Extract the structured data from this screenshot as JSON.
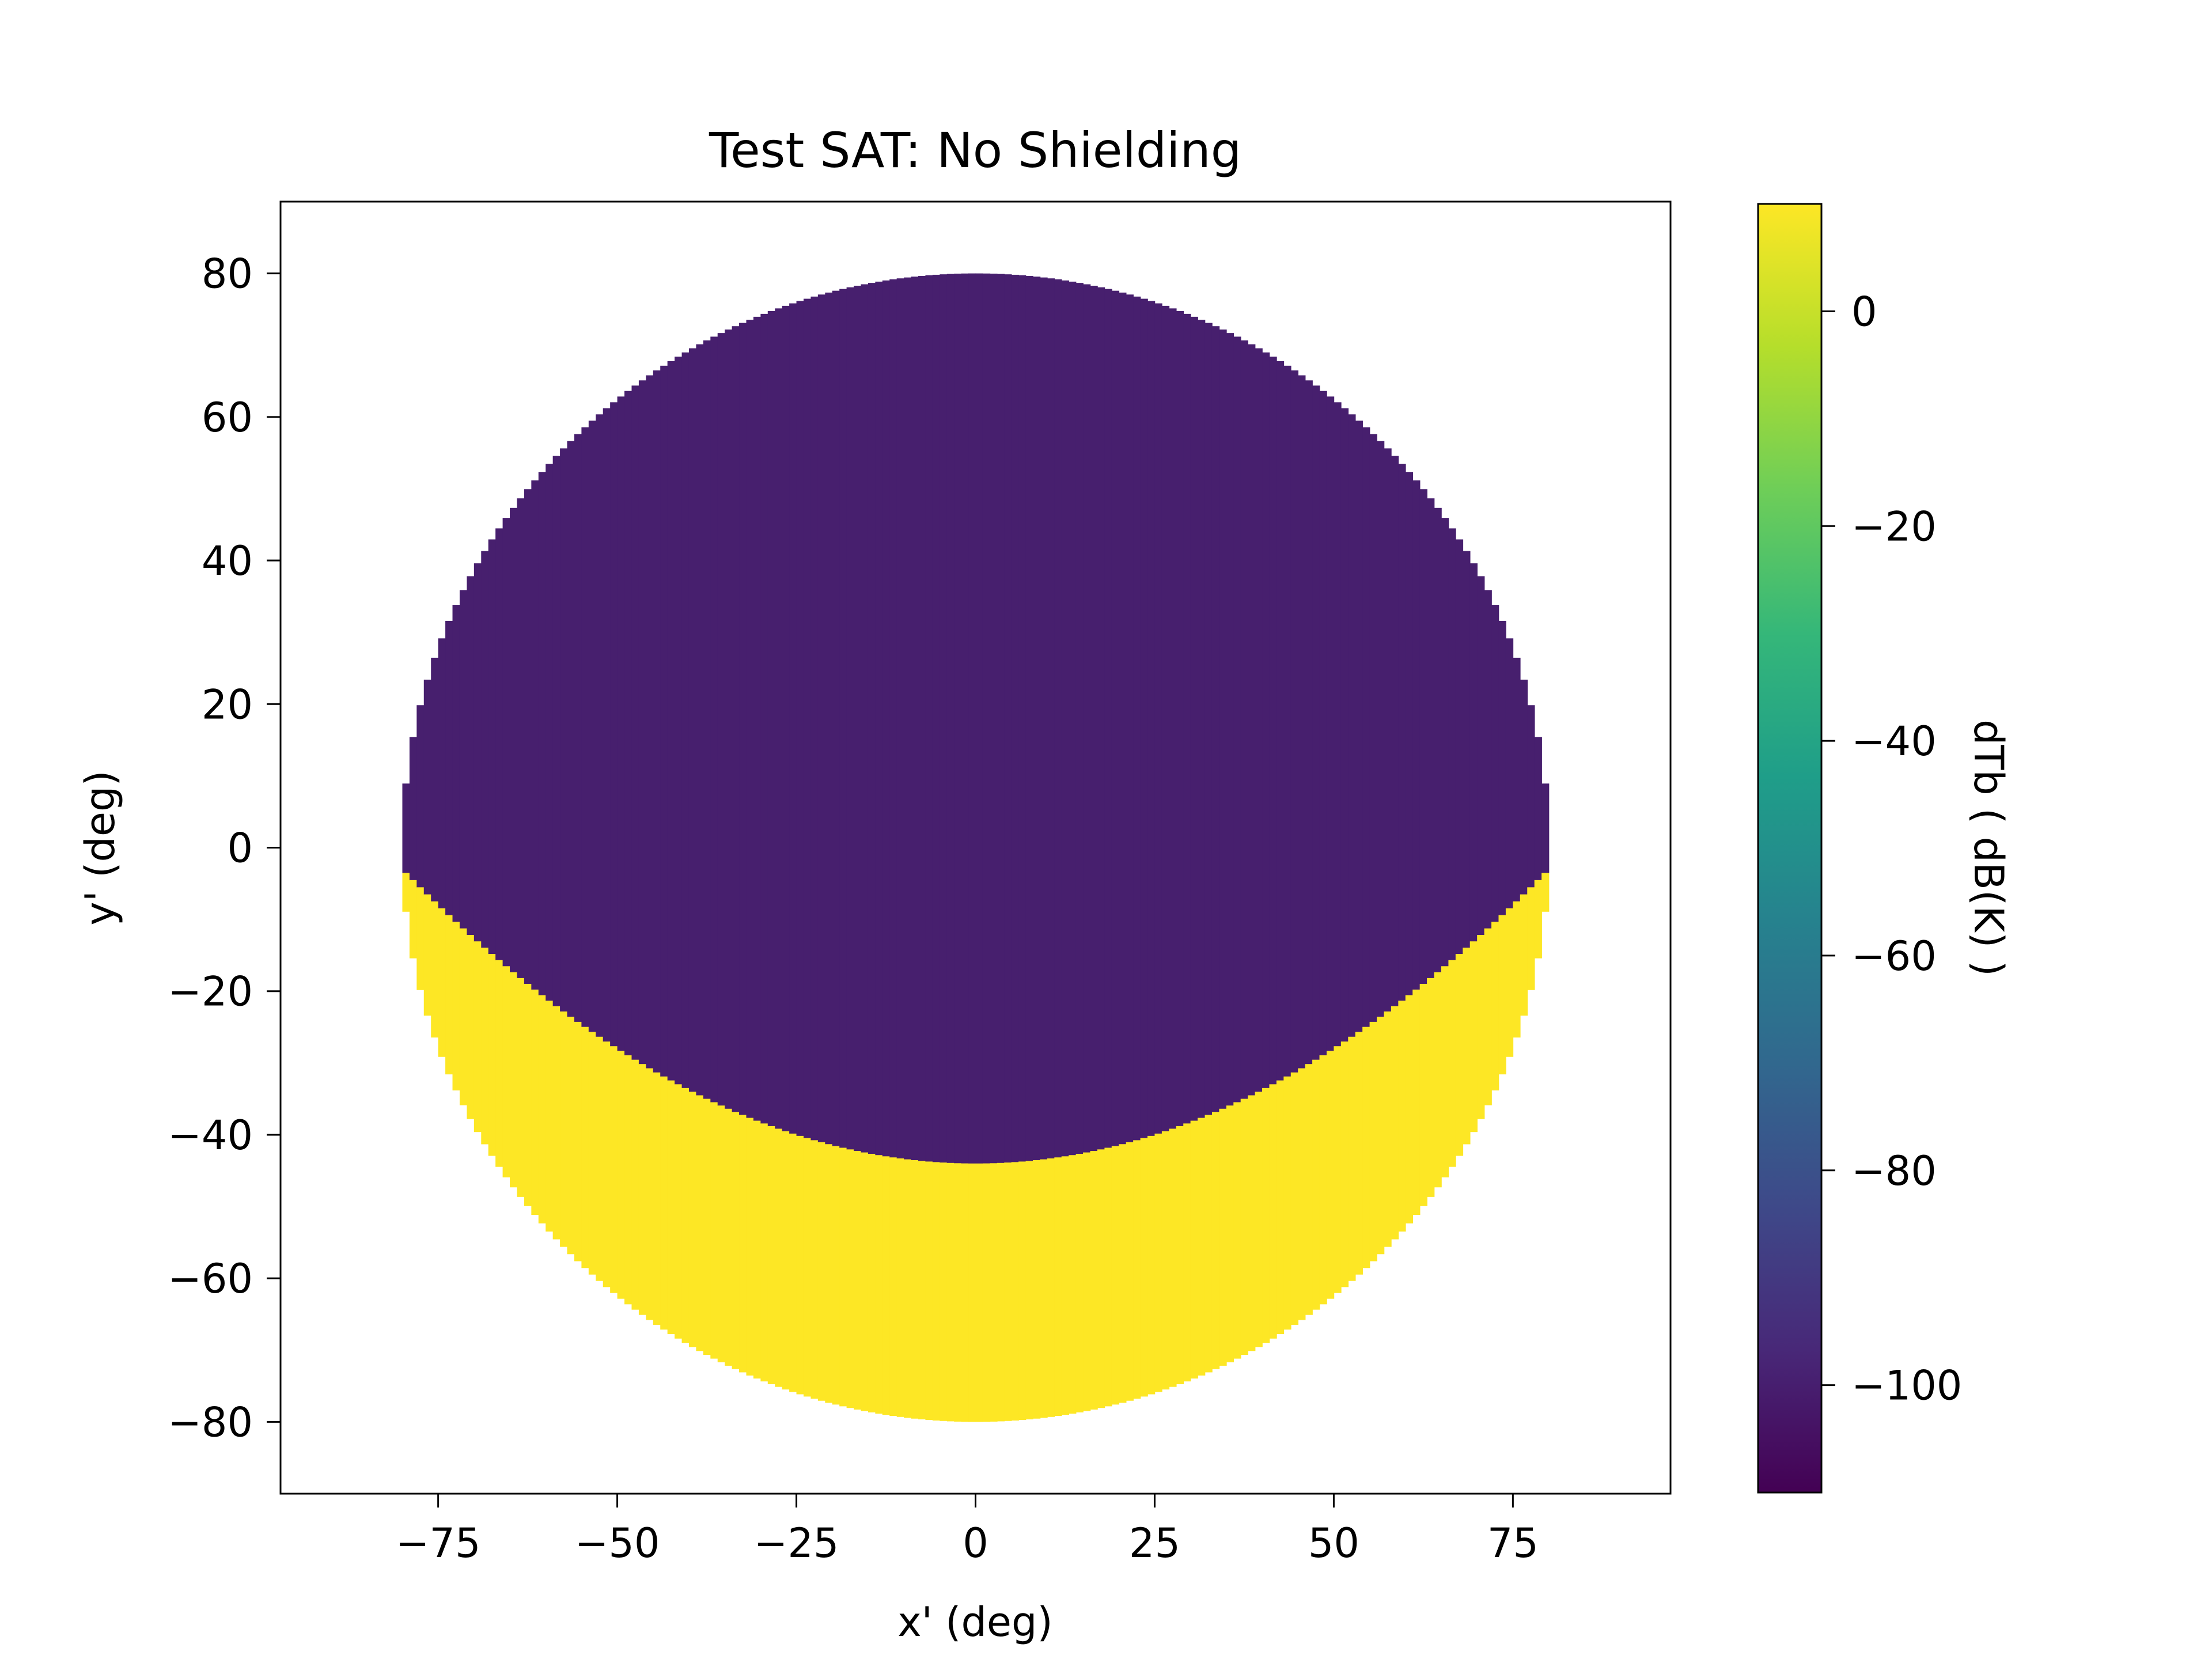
{
  "chart_data": {
    "type": "heatmap",
    "title": "Test SAT: No Shielding",
    "xlabel": "x' (deg)",
    "ylabel": "y' (deg)",
    "xlim": [
      -97,
      97
    ],
    "ylim": [
      -90,
      90
    ],
    "xticks": [
      -75,
      -50,
      -25,
      0,
      25,
      50,
      75
    ],
    "xtick_labels": [
      "−75",
      "−50",
      "−25",
      "0",
      "25",
      "50",
      "75"
    ],
    "yticks": [
      -80,
      -60,
      -40,
      -20,
      0,
      20,
      40,
      60,
      80
    ],
    "ytick_labels": [
      "−80",
      "−60",
      "−40",
      "−20",
      "0",
      "20",
      "40",
      "60",
      "80"
    ],
    "grid": false,
    "disk": {
      "center": [
        0,
        0
      ],
      "radius_deg": 80
    },
    "regions": [
      {
        "description": "upper region of disk",
        "value": -100,
        "boundary_y_at_x0": -44,
        "boundary_y_at_edge": -3,
        "color": "#471f6e"
      },
      {
        "description": "lower crescent of disk",
        "value": 10,
        "color": "#fde725"
      }
    ],
    "outside_disk": "no data (white)",
    "colorbar": {
      "label": "dTb ( dB(K) )",
      "range": [
        -110,
        10
      ],
      "ticks": [
        0,
        -20,
        -40,
        -60,
        -80,
        -100
      ],
      "tick_labels": [
        "0",
        "−20",
        "−40",
        "−60",
        "−80",
        "−100"
      ],
      "colormap": "viridis",
      "colormap_stops": [
        "#440154",
        "#482878",
        "#3e4989",
        "#31688e",
        "#26828e",
        "#1f9e89",
        "#35b779",
        "#6ece58",
        "#b5de2b",
        "#fde725"
      ]
    }
  }
}
